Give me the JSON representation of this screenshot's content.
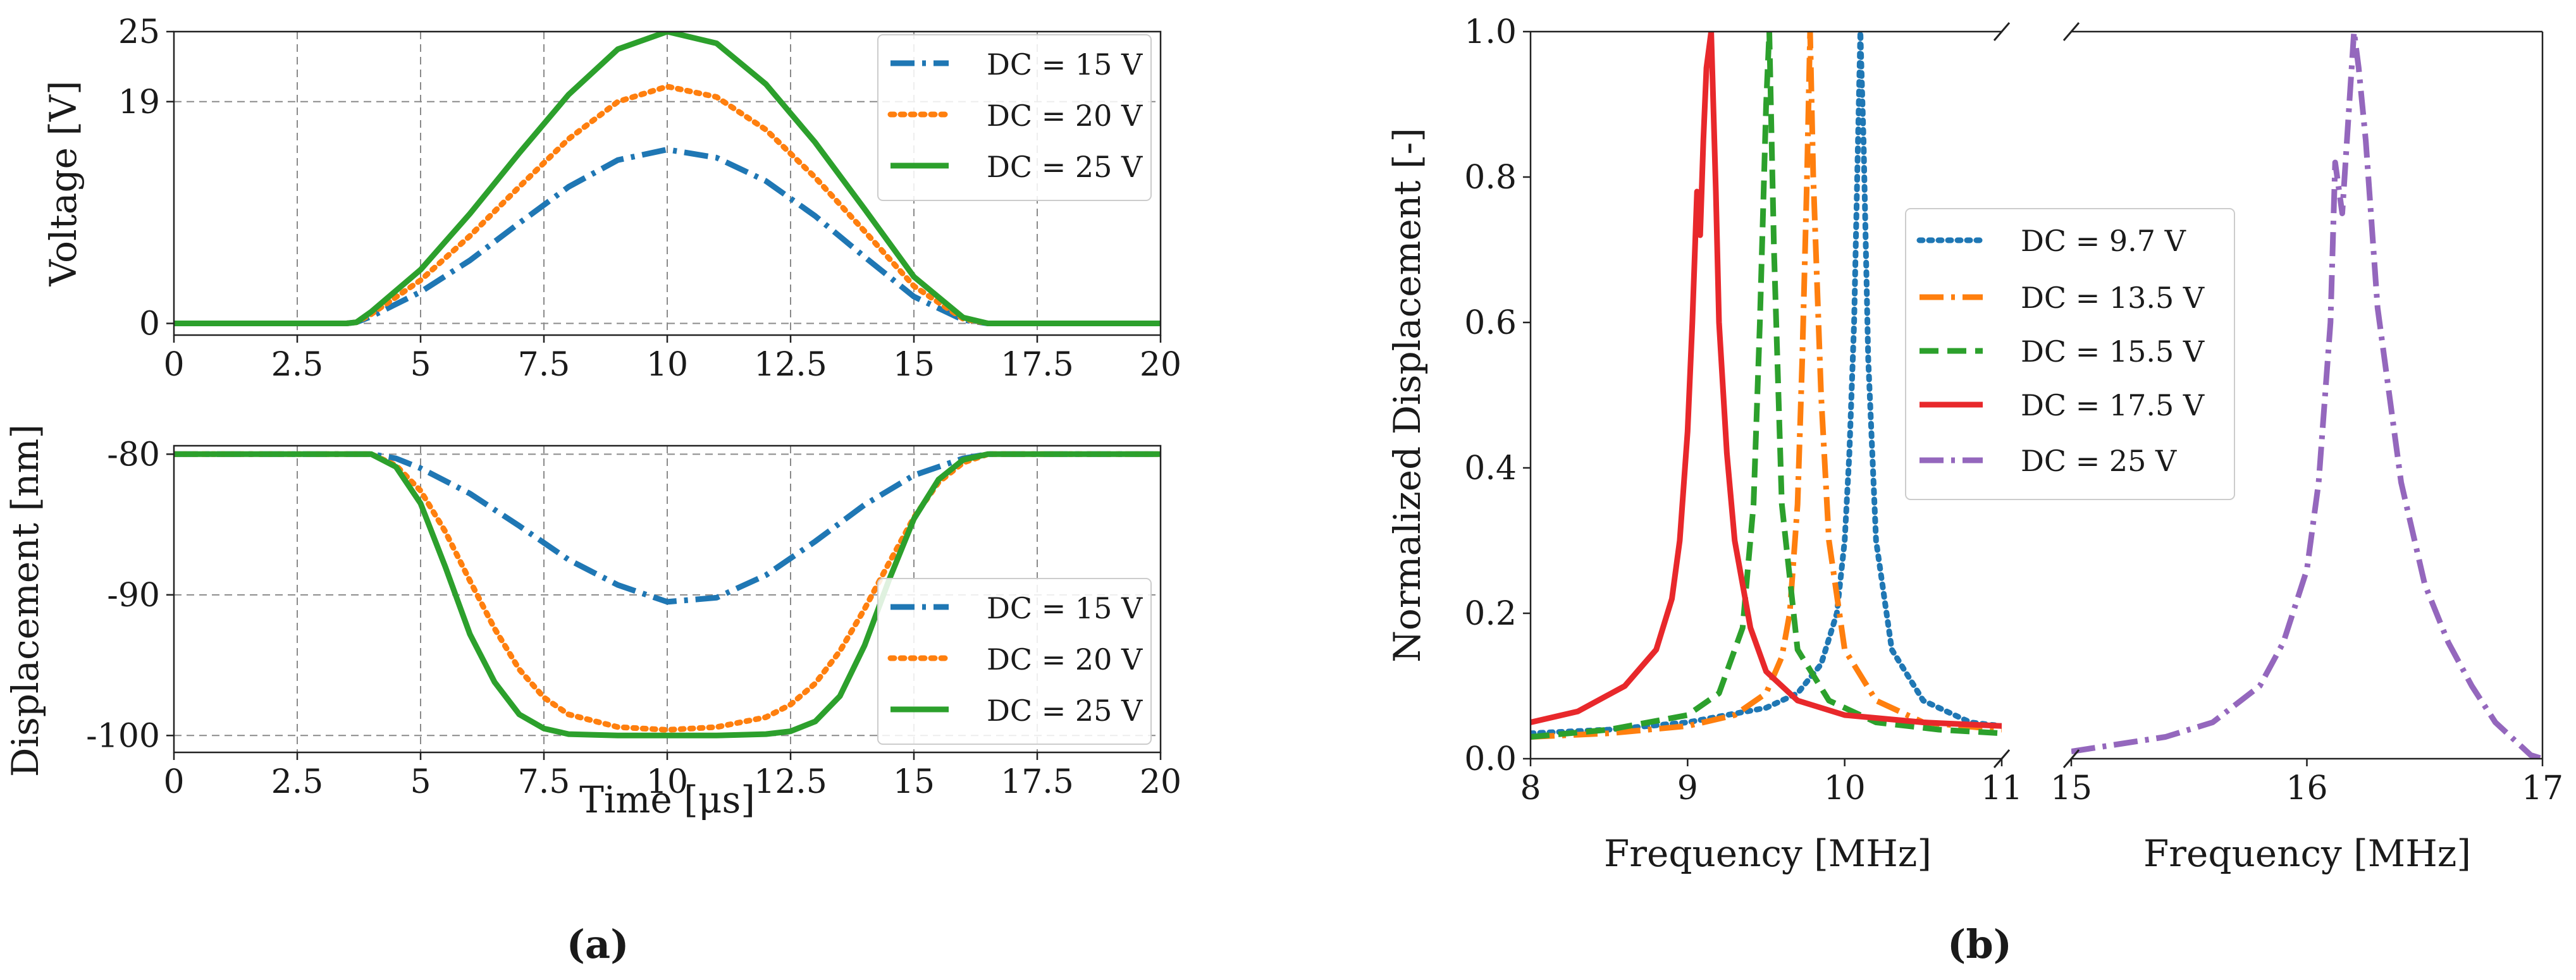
{
  "panel_labels": [
    "(a)",
    "(b)"
  ],
  "chart_data": [
    {
      "id": "voltage",
      "type": "line",
      "xlabel": "",
      "ylabel": "Voltage [V]",
      "xlim": [
        0,
        20
      ],
      "ylim": [
        -1,
        25
      ],
      "xticks": [
        "0",
        "2.5",
        "5",
        "7.5",
        "10",
        "12.5",
        "15",
        "17.5",
        "20"
      ],
      "yticks": [
        "0",
        "19",
        "25"
      ],
      "grid": true,
      "legend": "top-right",
      "legend_entries": [
        "DC = 15 V",
        "DC = 20 V",
        "DC = 25 V"
      ],
      "series": [
        {
          "name": "DC = 15 V",
          "color": "#1f77b4",
          "style": "dashdot",
          "x": [
            0,
            3.5,
            3.7,
            4,
            5,
            6,
            7,
            8,
            9,
            10,
            11,
            12,
            13,
            14,
            15,
            16,
            16.5,
            17,
            20
          ],
          "y": [
            0,
            0,
            0.1,
            0.6,
            2.7,
            5.4,
            8.6,
            11.7,
            14,
            14.9,
            14.2,
            12.2,
            9.2,
            5.7,
            2.3,
            0.3,
            0,
            0,
            0
          ]
        },
        {
          "name": "DC = 20 V",
          "color": "#ff7f0e",
          "style": "dotted",
          "x": [
            0,
            3.5,
            3.7,
            4,
            5,
            6,
            7,
            8,
            9,
            10,
            11,
            12,
            13,
            14,
            15,
            16,
            16.5,
            17,
            20
          ],
          "y": [
            0,
            0,
            0.1,
            0.8,
            3.7,
            7.5,
            11.7,
            15.8,
            19,
            20.3,
            19.4,
            16.6,
            12.5,
            7.9,
            3.2,
            0.4,
            0,
            0,
            0
          ]
        },
        {
          "name": "DC = 25 V",
          "color": "#2ca02c",
          "style": "solid",
          "x": [
            0,
            3.5,
            3.7,
            4,
            5,
            6,
            7,
            8,
            9,
            10,
            11,
            12,
            13,
            14,
            15,
            16,
            16.5,
            17,
            20
          ],
          "y": [
            0,
            0,
            0.1,
            1,
            4.6,
            9.4,
            14.6,
            19.6,
            23.5,
            25,
            24,
            20.5,
            15.5,
            9.8,
            4,
            0.5,
            0,
            0,
            0
          ]
        }
      ]
    },
    {
      "id": "displacement",
      "type": "line",
      "xlabel": "Time [μs]",
      "ylabel": "Displacement [nm]",
      "xlim": [
        0,
        20
      ],
      "ylim": [
        -101.2,
        -79.4
      ],
      "xticks": [
        "0",
        "2.5",
        "5",
        "7.5",
        "10",
        "12.5",
        "15",
        "17.5",
        "20"
      ],
      "yticks": [
        "-80",
        "-90",
        "-100"
      ],
      "grid": true,
      "legend": "bottom-right",
      "legend_entries": [
        "DC = 15 V",
        "DC = 20 V",
        "DC = 25 V"
      ],
      "series": [
        {
          "name": "DC = 15 V",
          "color": "#1f77b4",
          "style": "dashdot",
          "x": [
            0,
            4,
            4.5,
            5,
            6,
            7,
            8,
            9,
            10,
            11,
            12,
            13,
            14,
            15,
            16,
            16.5,
            20
          ],
          "y": [
            -80,
            -80,
            -80.3,
            -81,
            -82.8,
            -85.1,
            -87.5,
            -89.3,
            -90.5,
            -90.2,
            -88.6,
            -86.2,
            -83.6,
            -81.5,
            -80.3,
            -80,
            -80
          ]
        },
        {
          "name": "DC = 20 V",
          "color": "#ff7f0e",
          "style": "dotted",
          "x": [
            0,
            4,
            4.5,
            5,
            5.5,
            6,
            6.5,
            7,
            7.5,
            8,
            9,
            10,
            11,
            12,
            12.5,
            13,
            13.5,
            14,
            14.5,
            15,
            15.5,
            16,
            16.5,
            20
          ],
          "y": [
            -80,
            -80,
            -80.8,
            -82.6,
            -85.5,
            -89,
            -92.4,
            -95.3,
            -97.3,
            -98.5,
            -99.4,
            -99.6,
            -99.4,
            -98.7,
            -97.8,
            -96.3,
            -94,
            -91,
            -87.7,
            -84.5,
            -82,
            -80.6,
            -80,
            -80
          ]
        },
        {
          "name": "DC = 25 V",
          "color": "#2ca02c",
          "style": "solid",
          "x": [
            0,
            4,
            4.5,
            5,
            5.5,
            6,
            6.5,
            7,
            7.5,
            8,
            9,
            10,
            11,
            12,
            12.5,
            13,
            13.5,
            14,
            14.5,
            15,
            15.5,
            16,
            16.5,
            20
          ],
          "y": [
            -80,
            -80,
            -80.9,
            -83.5,
            -88,
            -92.8,
            -96.2,
            -98.5,
            -99.5,
            -99.9,
            -100,
            -100,
            -100,
            -99.9,
            -99.7,
            -99,
            -97.2,
            -93.6,
            -88.9,
            -84.6,
            -81.8,
            -80.4,
            -80,
            -80
          ]
        }
      ]
    },
    {
      "id": "frequency",
      "type": "line",
      "xlabel": "Frequency [MHz]",
      "ylabel": "Normalized Displacement [-]",
      "broken_x_axis": true,
      "xlim_left": [
        8,
        11
      ],
      "xlim_right": [
        15,
        17
      ],
      "ylim": [
        0,
        1
      ],
      "xticks_left": [
        "8",
        "9",
        "10",
        "11"
      ],
      "xticks_right": [
        "15",
        "16",
        "17"
      ],
      "yticks": [
        "0.0",
        "0.2",
        "0.4",
        "0.6",
        "0.8",
        "1.0"
      ],
      "grid": false,
      "legend": "center",
      "legend_entries": [
        "DC = 9.7 V",
        "DC = 13.5 V",
        "DC = 15.5 V",
        "DC = 17.5 V",
        "DC = 25 V"
      ],
      "series": [
        {
          "name": "DC = 9.7 V",
          "color": "#1f77b4",
          "style": "dotted",
          "x": [
            8,
            8.5,
            9,
            9.5,
            9.7,
            9.85,
            9.95,
            10,
            10.03,
            10.06,
            10.08,
            10.1,
            10.12,
            10.15,
            10.2,
            10.3,
            10.5,
            10.8,
            11
          ],
          "y": [
            0.035,
            0.04,
            0.05,
            0.07,
            0.09,
            0.13,
            0.2,
            0.3,
            0.42,
            0.6,
            0.8,
            1.0,
            0.85,
            0.55,
            0.3,
            0.15,
            0.08,
            0.05,
            0.045
          ]
        },
        {
          "name": "DC = 13.5 V",
          "color": "#ff7f0e",
          "style": "dashdot",
          "x": [
            8,
            8.5,
            9,
            9.3,
            9.5,
            9.6,
            9.65,
            9.7,
            9.73,
            9.76,
            9.78,
            9.8,
            9.85,
            9.9,
            10,
            10.2,
            10.5,
            11
          ],
          "y": [
            0.03,
            0.035,
            0.045,
            0.06,
            0.09,
            0.14,
            0.2,
            0.35,
            0.55,
            0.8,
            1.0,
            0.8,
            0.5,
            0.3,
            0.15,
            0.08,
            0.05,
            0.04
          ]
        },
        {
          "name": "DC = 15.5 V",
          "color": "#2ca02c",
          "style": "dashed",
          "x": [
            8,
            8.5,
            9,
            9.2,
            9.35,
            9.42,
            9.46,
            9.5,
            9.52,
            9.55,
            9.6,
            9.7,
            9.9,
            10.2,
            10.6,
            11
          ],
          "y": [
            0.03,
            0.04,
            0.06,
            0.09,
            0.18,
            0.35,
            0.6,
            0.9,
            1.0,
            0.7,
            0.35,
            0.15,
            0.08,
            0.05,
            0.04,
            0.035
          ]
        },
        {
          "name": "DC = 17.5 V",
          "color": "#e8282b",
          "style": "solid",
          "x": [
            8,
            8.3,
            8.6,
            8.8,
            8.9,
            8.95,
            9.0,
            9.03,
            9.06,
            9.08,
            9.1,
            9.12,
            9.15,
            9.18,
            9.2,
            9.25,
            9.3,
            9.4,
            9.5,
            9.7,
            10,
            10.5,
            11
          ],
          "y": [
            0.05,
            0.065,
            0.1,
            0.15,
            0.22,
            0.3,
            0.45,
            0.6,
            0.78,
            0.72,
            0.85,
            0.95,
            1.0,
            0.78,
            0.6,
            0.42,
            0.3,
            0.18,
            0.12,
            0.08,
            0.06,
            0.05,
            0.045
          ]
        },
        {
          "name": "DC = 25 V",
          "color": "#9467bd",
          "style": "dashdot",
          "x": [
            15,
            15.2,
            15.4,
            15.6,
            15.8,
            15.9,
            16.0,
            16.05,
            16.1,
            16.12,
            16.15,
            16.18,
            16.2,
            16.22,
            16.25,
            16.3,
            16.4,
            16.5,
            16.6,
            16.7,
            16.8,
            16.9,
            16.95,
            17
          ],
          "y": [
            0.01,
            0.02,
            0.03,
            0.05,
            0.1,
            0.16,
            0.26,
            0.38,
            0.6,
            0.82,
            0.75,
            0.9,
            1.0,
            0.95,
            0.85,
            0.62,
            0.38,
            0.24,
            0.16,
            0.1,
            0.05,
            0.02,
            0.005,
            0
          ]
        }
      ]
    }
  ]
}
